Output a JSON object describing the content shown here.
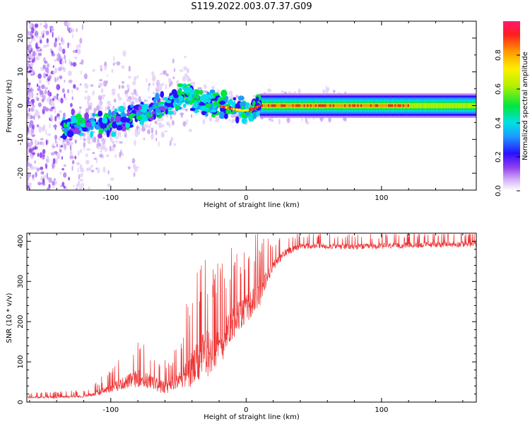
{
  "title": "S119.2022.003.07.37.G09",
  "chart_data": [
    {
      "type": "heatmap",
      "xlabel": "Height of straight line (km)",
      "ylabel": "Frequency (Hz)",
      "xlim": [
        -162,
        170
      ],
      "ylim": [
        -25,
        25
      ],
      "x_ticks": [
        -100,
        0,
        100
      ],
      "y_ticks": [
        -20,
        -10,
        0,
        10,
        20
      ],
      "colorbar": {
        "label": "Normalized spectral amplitude",
        "range": [
          0,
          1
        ],
        "ticks": [
          0.0,
          0.2,
          0.4,
          0.6,
          0.8
        ]
      },
      "ridge_center": [
        [
          -162,
          -6
        ],
        [
          -140,
          -6
        ],
        [
          -120,
          -6
        ],
        [
          -100,
          -5
        ],
        [
          -80,
          -2.5
        ],
        [
          -60,
          0
        ],
        [
          -50,
          2
        ],
        [
          -40,
          2.5
        ],
        [
          -35,
          1.5
        ],
        [
          -30,
          1
        ],
        [
          -20,
          0
        ],
        [
          -10,
          -1
        ],
        [
          -2,
          -1.5
        ],
        [
          5,
          -1
        ],
        [
          10,
          0
        ],
        [
          20,
          0
        ],
        [
          50,
          0
        ],
        [
          100,
          0
        ],
        [
          140,
          0
        ],
        [
          170,
          0
        ]
      ]
    },
    {
      "type": "line",
      "color": "#ee3333",
      "xlabel": "Height of straight line (km)",
      "ylabel": "SNR (10 * v/v)",
      "xlim": [
        -162,
        170
      ],
      "ylim": [
        0,
        420
      ],
      "x_ticks": [
        -100,
        0,
        100
      ],
      "y_ticks": [
        0,
        100,
        200,
        300,
        400
      ],
      "envelope": [
        [
          -162,
          12
        ],
        [
          -140,
          12
        ],
        [
          -120,
          15
        ],
        [
          -110,
          22
        ],
        [
          -100,
          35
        ],
        [
          -90,
          48
        ],
        [
          -80,
          60
        ],
        [
          -70,
          50
        ],
        [
          -60,
          35
        ],
        [
          -50,
          55
        ],
        [
          -40,
          80
        ],
        [
          -30,
          120
        ],
        [
          -20,
          130
        ],
        [
          -10,
          200
        ],
        [
          0,
          230
        ],
        [
          10,
          270
        ],
        [
          20,
          340
        ],
        [
          30,
          375
        ],
        [
          40,
          388
        ],
        [
          60,
          388
        ],
        [
          80,
          386
        ],
        [
          100,
          388
        ],
        [
          120,
          390
        ],
        [
          140,
          392
        ],
        [
          170,
          393
        ]
      ],
      "spike_amplitude": [
        [
          -162,
          6
        ],
        [
          -120,
          8
        ],
        [
          -100,
          25
        ],
        [
          -80,
          55
        ],
        [
          -60,
          40
        ],
        [
          -50,
          45
        ],
        [
          -40,
          120
        ],
        [
          -30,
          150
        ],
        [
          -20,
          120
        ],
        [
          -10,
          110
        ],
        [
          0,
          90
        ],
        [
          10,
          80
        ],
        [
          20,
          30
        ],
        [
          40,
          18
        ],
        [
          170,
          18
        ]
      ]
    }
  ]
}
